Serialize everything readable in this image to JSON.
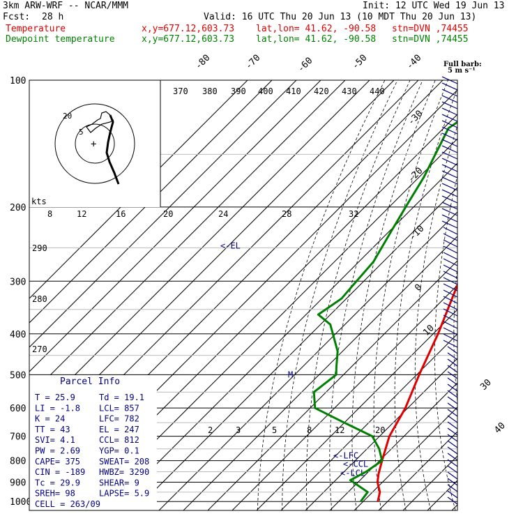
{
  "header": {
    "model": "3km ARW-WRF -- NCAR/MMM",
    "init": "Init: 12 UTC Wed 19 Jun 13",
    "fcst_label": "Fcst:",
    "fcst_value": "28 h",
    "valid": "Valid: 16 UTC Thu 20 Jun 13 (10 MDT Thu 20 Jun 13)",
    "temp_label": "Temperature",
    "dew_label": "Dewpoint temperature",
    "xy": "x,y=677.12,603.73",
    "latlon": "lat,lon= 41.62, -90.58",
    "stn": "stn=DVN ,74455"
  },
  "colors": {
    "temperature": "#e00000",
    "dewpoint": "#008000",
    "parcel_info": "#000080",
    "wind_barbs": "#000080",
    "isobars": "#000000",
    "isotherms": "#000000"
  },
  "barb_legend": {
    "line1": "Full barb:",
    "line2": "5 m s⁻¹"
  },
  "hodograph": {
    "units": "kts",
    "ring_labels": [
      "5",
      "20"
    ]
  },
  "parcel_info": {
    "title": "Parcel Info",
    "rows": [
      [
        "T  =   25.9",
        "Td =  19.1"
      ],
      [
        "LI =   -1.8",
        "LCL=  857"
      ],
      [
        "K  =     24",
        "LFC=  782"
      ],
      [
        "TT =     43",
        "EL =  247"
      ],
      [
        "SVI=    4.1",
        "CCL=  812"
      ],
      [
        "PW =   2.69",
        "YGP=  0.1"
      ],
      [
        "CAPE=   375",
        "SWEAT= 208"
      ],
      [
        "CIN =  -189",
        "HWBZ= 3290"
      ],
      [
        "Tc =   29.9",
        "SHEAR=  9"
      ],
      [
        "SREH=    98",
        "LAPSE= 5.9"
      ],
      [
        "CELL = 263/09",
        ""
      ]
    ]
  },
  "chart_data": {
    "type": "line",
    "title": "3km ARW-WRF -- NCAR/MMM",
    "xlabel": "",
    "ylabel": "",
    "pressure_ticks": [
      "100",
      "200",
      "300",
      "400",
      "500",
      "600",
      "700",
      "800",
      "900",
      "1000"
    ],
    "isotherm_labels": [
      "-80",
      "-70",
      "-60",
      "-50",
      "-40",
      "-30",
      "-20",
      "-10",
      "0",
      "10",
      "30",
      "40"
    ],
    "theta_labels": [
      "370",
      "380",
      "390",
      "400",
      "410",
      "420",
      "430",
      "440"
    ],
    "thetae_labels": [
      "290",
      "280",
      "270"
    ],
    "mixing_ratio_labels": [
      "2",
      "3",
      "5",
      "8",
      "12",
      "20"
    ],
    "hodo_speed_labels": [
      "8",
      "12",
      "16",
      "20",
      "24",
      "28",
      "32"
    ],
    "annotations": [
      {
        "text": "<-EL",
        "p": 247
      },
      {
        "text": "<-LFC",
        "p": 782
      },
      {
        "text": "<-CCL",
        "p": 812
      },
      {
        "text": "<-LCL",
        "p": 857
      },
      {
        "text": "M",
        "p": 500
      }
    ],
    "series": [
      {
        "name": "Temperature",
        "points": [
          [
            100,
            -63
          ],
          [
            150,
            -62
          ],
          [
            170,
            -60
          ],
          [
            190,
            -57
          ],
          [
            250,
            -43
          ],
          [
            300,
            -31
          ],
          [
            400,
            -18
          ],
          [
            500,
            -9
          ],
          [
            600,
            -1
          ],
          [
            700,
            4
          ],
          [
            800,
            11
          ],
          [
            860,
            15
          ],
          [
            900,
            18
          ],
          [
            950,
            23
          ],
          [
            1000,
            26
          ]
        ]
      },
      {
        "name": "Dewpoint temperature",
        "points": [
          [
            100,
            -89
          ],
          [
            130,
            -98
          ],
          [
            170,
            -88
          ],
          [
            195,
            -84
          ],
          [
            230,
            -79
          ],
          [
            270,
            -74
          ],
          [
            300,
            -73
          ],
          [
            330,
            -72
          ],
          [
            360,
            -75
          ],
          [
            380,
            -66
          ],
          [
            440,
            -52
          ],
          [
            480,
            -46
          ],
          [
            500,
            -43
          ],
          [
            550,
            -45
          ],
          [
            600,
            -38
          ],
          [
            650,
            -20
          ],
          [
            700,
            -3
          ],
          [
            750,
            5
          ],
          [
            800,
            11
          ],
          [
            850,
            9
          ],
          [
            890,
            6
          ],
          [
            950,
            18
          ],
          [
            1000,
            19
          ]
        ]
      }
    ]
  }
}
